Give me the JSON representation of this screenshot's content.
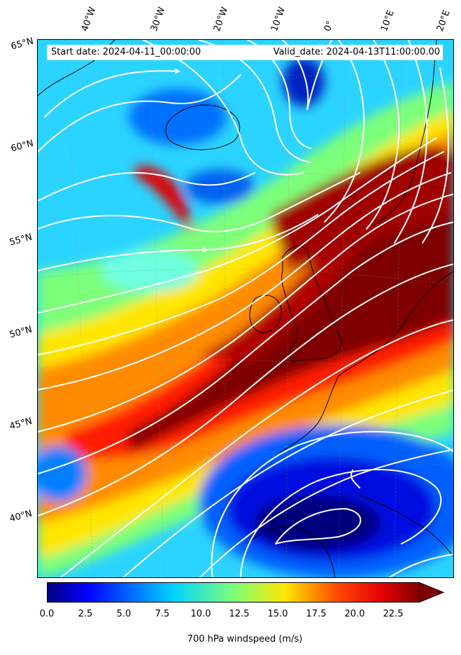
{
  "header": {
    "start_date": "Start date: 2024-04-11_00:00:00",
    "valid_date": "Valid_date: 2024-04-13T11:00:00.00"
  },
  "longitude_labels": [
    "40°W",
    "30°W",
    "20°W",
    "10°W",
    "0°",
    "10°E",
    "20°E"
  ],
  "latitude_labels": [
    "65°N",
    "60°N",
    "55°N",
    "50°N",
    "45°N",
    "40°N"
  ],
  "colorbar": {
    "label": "700 hPa windspeed (m/s)",
    "min": 0,
    "max": 25,
    "extend": "max",
    "colormap": "jet",
    "ticks": [
      "0.0",
      "2.5",
      "5.0",
      "7.5",
      "10.0",
      "12.5",
      "15.0",
      "17.5",
      "20.0",
      "22.5"
    ]
  },
  "colors": {
    "jet_core": "#7f0000",
    "low_wind": "#00007f",
    "streamline": "#ffffff",
    "coastline": "#000000"
  }
}
